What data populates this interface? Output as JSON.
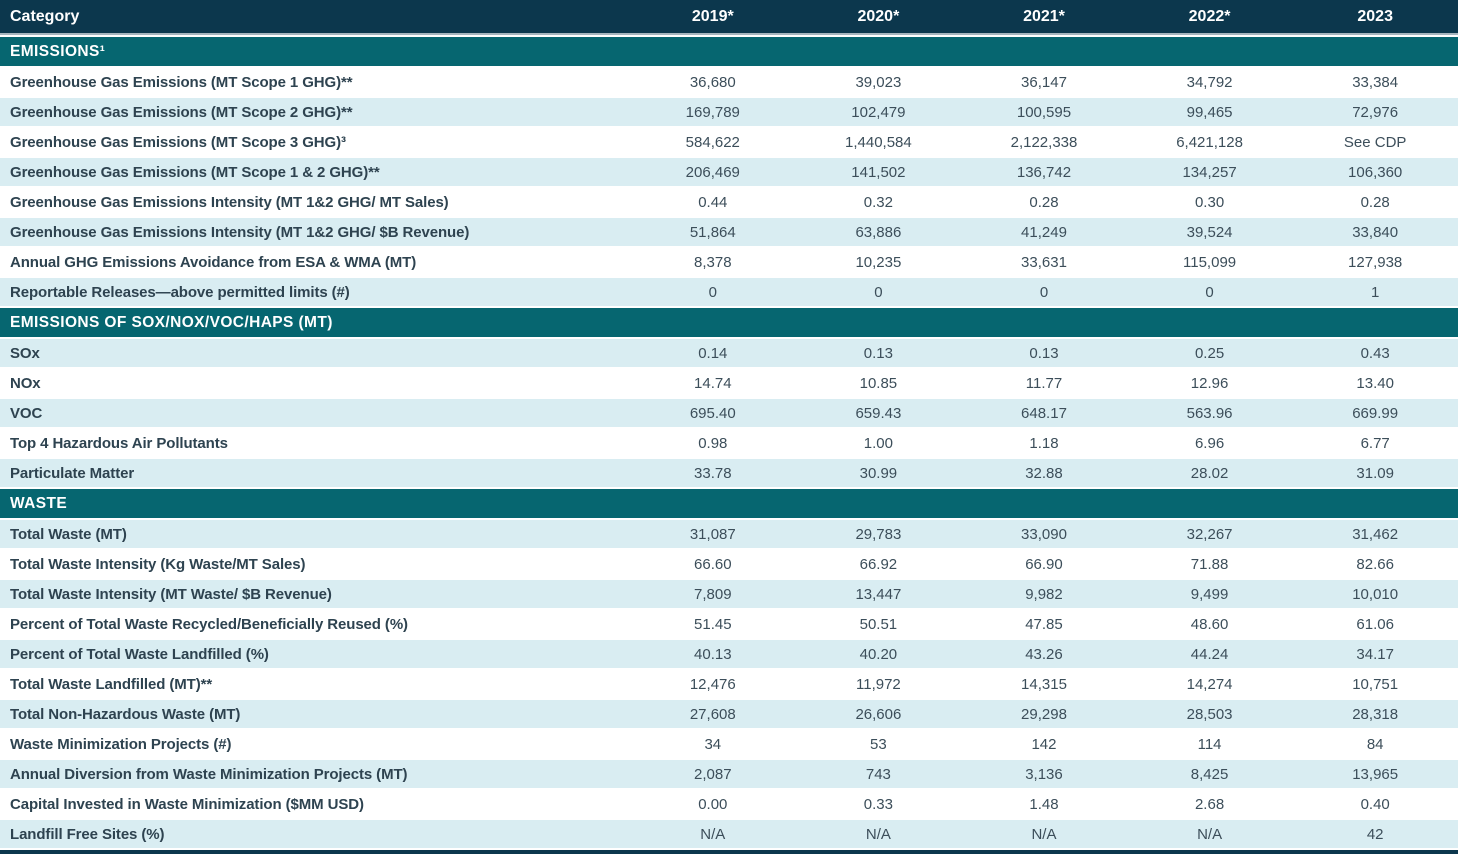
{
  "colors": {
    "header_navy": "#0c374d",
    "section_teal": "#066670",
    "row_shaded_blue": "#d9edf2",
    "label_text": "#2e4350",
    "value_text": "#3c4e5a",
    "header_text": "#ffffff"
  },
  "table": {
    "header": {
      "category": "Category",
      "years": [
        "2019*",
        "2020*",
        "2021*",
        "2022*",
        "2023"
      ]
    },
    "sections": [
      {
        "title": "EMISSIONS¹",
        "rows": [
          {
            "label": "Greenhouse Gas Emissions (MT Scope 1 GHG)**",
            "values": [
              "36,680",
              "39,023",
              "36,147",
              "34,792",
              "33,384"
            ]
          },
          {
            "label": "Greenhouse Gas Emissions (MT Scope 2 GHG)**",
            "values": [
              "169,789",
              "102,479",
              "100,595",
              "99,465",
              "72,976"
            ]
          },
          {
            "label": "Greenhouse Gas Emissions (MT Scope 3 GHG)³",
            "values": [
              "584,622",
              "1,440,584",
              "2,122,338",
              "6,421,128",
              "See CDP"
            ]
          },
          {
            "label": "Greenhouse Gas Emissions (MT Scope 1 & 2 GHG)**",
            "values": [
              "206,469",
              "141,502",
              "136,742",
              "134,257",
              "106,360"
            ]
          },
          {
            "label": "Greenhouse Gas Emissions Intensity (MT 1&2 GHG/ MT Sales)",
            "values": [
              "0.44",
              "0.32",
              "0.28",
              "0.30",
              "0.28"
            ]
          },
          {
            "label": "Greenhouse Gas Emissions Intensity (MT 1&2 GHG/ $B Revenue)",
            "values": [
              "51,864",
              "63,886",
              "41,249",
              "39,524",
              "33,840"
            ]
          },
          {
            "label": "Annual GHG Emissions Avoidance from ESA & WMA (MT)",
            "values": [
              "8,378",
              "10,235",
              "33,631",
              "115,099",
              "127,938"
            ]
          },
          {
            "label": "Reportable Releases—above permitted limits (#)",
            "values": [
              "0",
              "0",
              "0",
              "0",
              "1"
            ]
          }
        ]
      },
      {
        "title": "EMISSIONS OF SOX/NOX/VOC/HAPS (MT)",
        "rows": [
          {
            "label": "SOx",
            "values": [
              "0.14",
              "0.13",
              "0.13",
              "0.25",
              "0.43"
            ]
          },
          {
            "label": "NOx",
            "values": [
              "14.74",
              "10.85",
              "11.77",
              "12.96",
              "13.40"
            ]
          },
          {
            "label": "VOC",
            "values": [
              "695.40",
              "659.43",
              "648.17",
              "563.96",
              "669.99"
            ]
          },
          {
            "label": "Top 4 Hazardous Air Pollutants",
            "values": [
              "0.98",
              "1.00",
              "1.18",
              "6.96",
              "6.77"
            ]
          },
          {
            "label": "Particulate Matter",
            "values": [
              "33.78",
              "30.99",
              "32.88",
              "28.02",
              "31.09"
            ]
          }
        ]
      },
      {
        "title": "WASTE",
        "rows": [
          {
            "label": "Total Waste (MT)",
            "values": [
              "31,087",
              "29,783",
              "33,090",
              "32,267",
              "31,462"
            ]
          },
          {
            "label": "Total Waste Intensity (Kg Waste/MT Sales)",
            "values": [
              "66.60",
              "66.92",
              "66.90",
              "71.88",
              "82.66"
            ]
          },
          {
            "label": "Total Waste Intensity (MT Waste/ $B Revenue)",
            "values": [
              "7,809",
              "13,447",
              "9,982",
              "9,499",
              "10,010"
            ]
          },
          {
            "label": "Percent of Total Waste Recycled/Beneficially Reused (%)",
            "values": [
              "51.45",
              "50.51",
              "47.85",
              "48.60",
              "61.06"
            ]
          },
          {
            "label": "Percent of Total Waste Landfilled (%)",
            "values": [
              "40.13",
              "40.20",
              "43.26",
              "44.24",
              "34.17"
            ]
          },
          {
            "label": "Total Waste Landfilled (MT)**",
            "values": [
              "12,476",
              "11,972",
              "14,315",
              "14,274",
              "10,751"
            ]
          },
          {
            "label": "Total Non-Hazardous Waste (MT)",
            "values": [
              "27,608",
              "26,606",
              "29,298",
              "28,503",
              "28,318"
            ]
          },
          {
            "label": "Waste Minimization Projects (#)",
            "values": [
              "34",
              "53",
              "142",
              "114",
              "84"
            ]
          },
          {
            "label": "Annual Diversion from Waste Minimization Projects (MT)",
            "values": [
              "2,087",
              "743",
              "3,136",
              "8,425",
              "13,965"
            ]
          },
          {
            "label": "Capital Invested in Waste Minimization ($MM USD)",
            "values": [
              "0.00",
              "0.33",
              "1.48",
              "2.68",
              "0.40"
            ]
          },
          {
            "label": "Landfill Free Sites (%)",
            "values": [
              "N/A",
              "N/A",
              "N/A",
              "N/A",
              "42"
            ]
          }
        ]
      }
    ]
  }
}
